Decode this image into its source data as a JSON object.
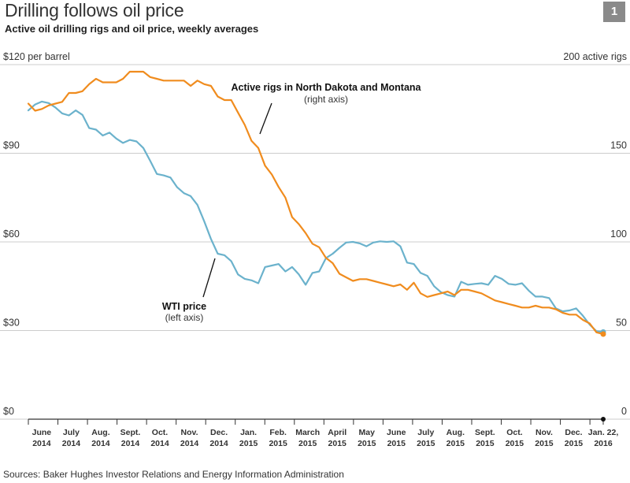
{
  "title": "Drilling follows oil price",
  "subtitle": "Active oil drilling rigs and oil price, weekly averages",
  "badge": "1",
  "source": "Sources: Baker Hughes Investor Relations and Energy Information Administration",
  "colors": {
    "wti": "#6bb2cc",
    "rigs": "#f08c1e",
    "grid": "#cccccc",
    "axis": "#333333"
  },
  "chart_data": {
    "type": "line",
    "title": "Drilling follows oil price",
    "subtitle": "Active oil drilling rigs and oil price, weekly averages",
    "left_axis": {
      "label": "$120 per barrel",
      "range": [
        0,
        120
      ],
      "ticks": [
        0,
        30,
        60,
        90,
        120
      ],
      "tick_labels": [
        "$0",
        "$30",
        "$60",
        "$90",
        "$120 per barrel"
      ]
    },
    "right_axis": {
      "label": "200 active rigs",
      "range": [
        0,
        200
      ],
      "ticks": [
        0,
        50,
        100,
        150,
        200
      ],
      "tick_labels": [
        "0",
        "50",
        "100",
        "150",
        "200 active rigs"
      ]
    },
    "months": [
      {
        "m": "June",
        "y": "2014"
      },
      {
        "m": "July",
        "y": "2014"
      },
      {
        "m": "Aug.",
        "y": "2014"
      },
      {
        "m": "Sept.",
        "y": "2014"
      },
      {
        "m": "Oct.",
        "y": "2014"
      },
      {
        "m": "Nov.",
        "y": "2014"
      },
      {
        "m": "Dec.",
        "y": "2014"
      },
      {
        "m": "Jan.",
        "y": "2015"
      },
      {
        "m": "Feb.",
        "y": "2015"
      },
      {
        "m": "March",
        "y": "2015"
      },
      {
        "m": "April",
        "y": "2015"
      },
      {
        "m": "May",
        "y": "2015"
      },
      {
        "m": "June",
        "y": "2015"
      },
      {
        "m": "July",
        "y": "2015"
      },
      {
        "m": "Aug.",
        "y": "2015"
      },
      {
        "m": "Sept.",
        "y": "2015"
      },
      {
        "m": "Oct.",
        "y": "2015"
      },
      {
        "m": "Nov.",
        "y": "2015"
      },
      {
        "m": "Dec.",
        "y": "2015"
      },
      {
        "m": "Jan. 22,",
        "y": "2016"
      }
    ],
    "x_range_weeks": [
      0,
      86
    ],
    "series": [
      {
        "name": "WTI price",
        "axis": "left",
        "annotation": [
          "WTI price",
          "(left axis)"
        ],
        "values": [
          104.5,
          106.5,
          107.5,
          107,
          105.5,
          103.5,
          102.8,
          104.5,
          103,
          98.5,
          98,
          96,
          97,
          95,
          93.5,
          94.5,
          94,
          91.8,
          87.5,
          83,
          82.5,
          81.8,
          78.5,
          76.5,
          75.5,
          72.5,
          67,
          61,
          56,
          55.5,
          53.5,
          49,
          47.5,
          47,
          46,
          51.5,
          52,
          52.5,
          50,
          51.5,
          49,
          45.5,
          49.5,
          50,
          54.5,
          56,
          58,
          59.8,
          60,
          59.5,
          58.5,
          59.8,
          60.2,
          60,
          60.2,
          58.5,
          53,
          52.5,
          49.5,
          48.5,
          45,
          43,
          42,
          41.5,
          46.5,
          45.5,
          45.8,
          46,
          45.5,
          48.5,
          47.5,
          45.8,
          45.5,
          46,
          43.5,
          41.5,
          41.5,
          41,
          37.5,
          36.5,
          36.8,
          37.5,
          35,
          32,
          29.8,
          29.5
        ]
      },
      {
        "name": "Active rigs in North Dakota and Montana",
        "axis": "right",
        "annotation": [
          "Active rigs in North Dakota and Montana",
          "(right axis)"
        ],
        "values": [
          178,
          174,
          175,
          177,
          178,
          179,
          184,
          184,
          185,
          189,
          192,
          190,
          190,
          190,
          192,
          196,
          196,
          196,
          193,
          192,
          191,
          191,
          191,
          191,
          188,
          191,
          189,
          188,
          182,
          180,
          180,
          173,
          166,
          157,
          153,
          143,
          138,
          131,
          125,
          114,
          110,
          105,
          99,
          97,
          91,
          88,
          82,
          80,
          78,
          79,
          79,
          78,
          77,
          76,
          75,
          76,
          73,
          77,
          71,
          69,
          70,
          71,
          72,
          70,
          73,
          73,
          72,
          71,
          69,
          67,
          66,
          65,
          64,
          63,
          63,
          64,
          63,
          63,
          62,
          60,
          59,
          59,
          56,
          54,
          49,
          48
        ]
      }
    ]
  }
}
